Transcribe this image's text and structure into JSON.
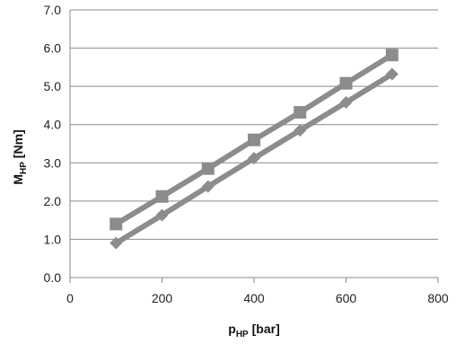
{
  "chart_data": {
    "type": "line",
    "xlabel": {
      "main": "p",
      "sub": "HP",
      "unit": " [bar]"
    },
    "ylabel": {
      "main": "M",
      "sub": "HP",
      "unit": " [Nm]"
    },
    "xlim": [
      0,
      800
    ],
    "ylim": [
      0.0,
      7.0
    ],
    "xticks": [
      0,
      200,
      400,
      600,
      800
    ],
    "xtick_labels": [
      "0",
      "200",
      "400",
      "600",
      "800"
    ],
    "yticks": [
      0,
      1,
      2,
      3,
      4,
      5,
      6,
      7
    ],
    "ytick_labels": [
      "0.0",
      "1.0",
      "2.0",
      "3.0",
      "4.0",
      "5.0",
      "6.0",
      "7.0"
    ],
    "grid": {
      "horizontal": true,
      "vertical": false
    },
    "legend": "none",
    "series": [
      {
        "marker": "square",
        "color": "#8c8c8c",
        "x": [
          100,
          200,
          300,
          400,
          500,
          600,
          700
        ],
        "y": [
          1.4,
          2.12,
          2.85,
          3.6,
          4.32,
          5.08,
          5.82
        ]
      },
      {
        "marker": "diamond",
        "color": "#8c8c8c",
        "x": [
          100,
          200,
          300,
          400,
          500,
          600,
          700
        ],
        "y": [
          0.9,
          1.63,
          2.38,
          3.12,
          3.85,
          4.58,
          5.32
        ]
      }
    ]
  }
}
